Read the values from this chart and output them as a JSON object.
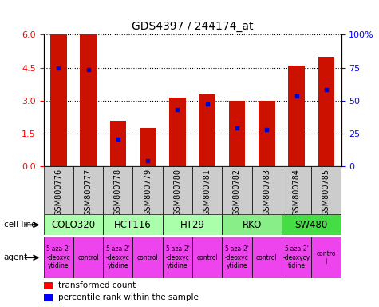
{
  "title": "GDS4397 / 244174_at",
  "samples": [
    "GSM800776",
    "GSM800777",
    "GSM800778",
    "GSM800779",
    "GSM800780",
    "GSM800781",
    "GSM800782",
    "GSM800783",
    "GSM800784",
    "GSM800785"
  ],
  "red_values": [
    6.0,
    6.0,
    2.1,
    1.75,
    3.15,
    3.3,
    3.0,
    3.0,
    4.6,
    5.0
  ],
  "blue_values": [
    4.5,
    4.4,
    1.25,
    0.28,
    2.6,
    2.85,
    1.75,
    1.7,
    3.2,
    3.5
  ],
  "ylim_left": [
    0,
    6
  ],
  "ylim_right": [
    0,
    100
  ],
  "yticks_left": [
    0,
    1.5,
    3.0,
    4.5,
    6.0
  ],
  "yticks_right": [
    0,
    25,
    50,
    75,
    100
  ],
  "bar_color": "#cc1100",
  "dot_color": "#0000cc",
  "bar_width": 0.55,
  "cell_line_groups": [
    {
      "label": "COLO320",
      "start": 0,
      "end": 2,
      "color": "#aaffaa"
    },
    {
      "label": "HCT116",
      "start": 2,
      "end": 4,
      "color": "#aaffaa"
    },
    {
      "label": "HT29",
      "start": 4,
      "end": 6,
      "color": "#aaffaa"
    },
    {
      "label": "RKO",
      "start": 6,
      "end": 8,
      "color": "#88ee88"
    },
    {
      "label": "SW480",
      "start": 8,
      "end": 10,
      "color": "#44dd44"
    }
  ],
  "agents": [
    {
      "label": "5-aza-2'\n-deoxyc\nytidine",
      "start": 0,
      "end": 1
    },
    {
      "label": "control",
      "start": 1,
      "end": 2
    },
    {
      "label": "5-aza-2'\n-deoxyc\nytidine",
      "start": 2,
      "end": 3
    },
    {
      "label": "control",
      "start": 3,
      "end": 4
    },
    {
      "label": "5-aza-2'\n-deoxyc\nytidine",
      "start": 4,
      "end": 5
    },
    {
      "label": "control",
      "start": 5,
      "end": 6
    },
    {
      "label": "5-aza-2'\n-deoxyc\nytidine",
      "start": 6,
      "end": 7
    },
    {
      "label": "control",
      "start": 7,
      "end": 8
    },
    {
      "label": "5-aza-2'\n-deoxycy\ntidine",
      "start": 8,
      "end": 9
    },
    {
      "label": "control\nl",
      "start": 9,
      "end": 10
    }
  ],
  "agent_color": "#ee44ee",
  "sample_box_color": "#cccccc",
  "title_fontsize": 10,
  "tick_fontsize": 7,
  "annotation_fontsize": 7.5
}
